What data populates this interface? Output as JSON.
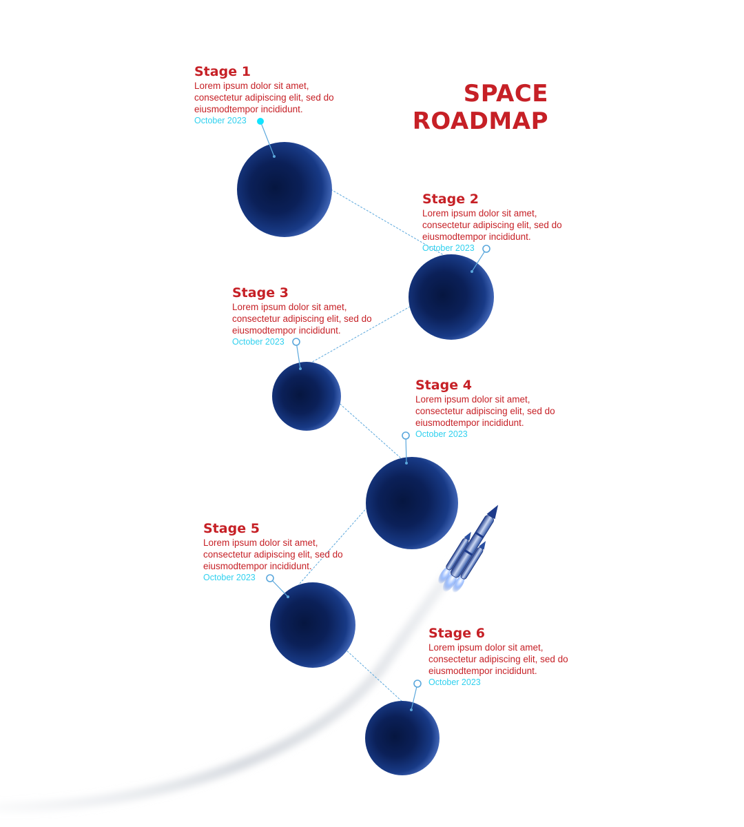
{
  "title": {
    "line1": "SPACE",
    "line2": "ROADMAP"
  },
  "colors": {
    "heading": "#c62026",
    "date": "#2fd0ee",
    "planet_dark": "#0a1c4a",
    "planet_light": "#2a4fa0",
    "connector": "#5aa7dc"
  },
  "stages": [
    {
      "title": "Stage 1",
      "description": "Lorem ipsum dolor sit amet, consectetur adipiscing elit, sed do eiusmodtempor incididunt.",
      "date": "October 2023"
    },
    {
      "title": "Stage 2",
      "description": "Lorem ipsum dolor sit amet, consectetur adipiscing elit, sed do eiusmodtempor incididunt.",
      "date": "October 2023"
    },
    {
      "title": "Stage 3",
      "description": "Lorem ipsum dolor sit amet, consectetur adipiscing elit, sed do eiusmodtempor incididunt.",
      "date": "October 2023"
    },
    {
      "title": "Stage 4",
      "description": "Lorem ipsum dolor sit amet, consectetur adipiscing elit, sed do eiusmodtempor incididunt.",
      "date": "October 2023"
    },
    {
      "title": "Stage 5",
      "description": "Lorem ipsum dolor sit amet, consectetur adipiscing elit, sed do eiusmodtempor incididunt.",
      "date": "October 2023"
    },
    {
      "title": "Stage 6",
      "description": "Lorem ipsum dolor sit amet, consectetur adipiscing elit, sed do eiusmodtempor incididunt.",
      "date": "October 2023"
    }
  ],
  "icons": {
    "rocket": "rocket-icon",
    "planet": "planet-icon"
  }
}
